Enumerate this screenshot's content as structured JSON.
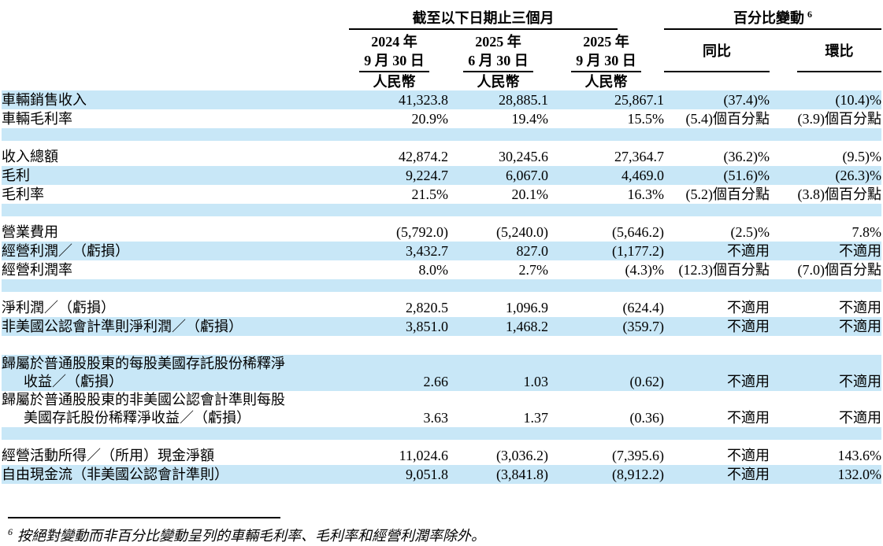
{
  "header": {
    "period_title": "截至以下日期止三個月",
    "change_title": "百分比變動",
    "change_title_sup": "6",
    "columns": [
      {
        "year_line": "2024 年",
        "date_line": "9 月 30 日",
        "currency": "人民幣"
      },
      {
        "year_line": "2025 年",
        "date_line": "6 月 30 日",
        "currency": "人民幣"
      },
      {
        "year_line": "2025 年",
        "date_line": "9 月 30 日",
        "currency": "人民幣"
      }
    ],
    "yoy_label": "同比",
    "qoq_label": "環比"
  },
  "table": {
    "rows": [
      {
        "type": "data",
        "bg": "blue",
        "label": "車輛銷售收入",
        "values": [
          "41,323.8",
          "28,885.1",
          "25,867.1",
          "(37.4)%",
          "(10.4)%"
        ]
      },
      {
        "type": "data",
        "bg": "white",
        "label": "車輛毛利率",
        "values": [
          "20.9%",
          "19.4%",
          "15.5%",
          "(5.4)個百分點",
          "(3.9)個百分點"
        ]
      },
      {
        "type": "spacer",
        "bg": "blue",
        "height": 16
      },
      {
        "type": "spacer",
        "bg": "white",
        "height": 8
      },
      {
        "type": "data",
        "bg": "white",
        "label": "收入總額",
        "values": [
          "42,874.2",
          "30,245.6",
          "27,364.7",
          "(36.2)%",
          "(9.5)%"
        ]
      },
      {
        "type": "data",
        "bg": "blue",
        "label": "毛利",
        "values": [
          "9,224.7",
          "6,067.0",
          "4,469.0",
          "(51.6)%",
          "(26.3)%"
        ]
      },
      {
        "type": "data",
        "bg": "white",
        "label": "毛利率",
        "values": [
          "21.5%",
          "20.1%",
          "16.3%",
          "(5.2)個百分點",
          "(3.8)個百分點"
        ]
      },
      {
        "type": "spacer",
        "bg": "blue",
        "height": 16
      },
      {
        "type": "spacer",
        "bg": "white",
        "height": 8
      },
      {
        "type": "data",
        "bg": "white",
        "label": "營業費用",
        "values": [
          "(5,792.0)",
          "(5,240.0)",
          "(5,646.2)",
          "(2.5)%",
          "7.8%"
        ]
      },
      {
        "type": "data",
        "bg": "blue",
        "label": "經營利潤／（虧損）",
        "values": [
          "3,432.7",
          "827.0",
          "(1,177.2)",
          "不適用",
          "不適用"
        ]
      },
      {
        "type": "data",
        "bg": "white",
        "label": "經營利潤率",
        "values": [
          "8.0%",
          "2.7%",
          "(4.3)%",
          "(12.3)個百分點",
          "(7.0)個百分點"
        ]
      },
      {
        "type": "spacer",
        "bg": "blue",
        "height": 16
      },
      {
        "type": "spacer",
        "bg": "white",
        "height": 8
      },
      {
        "type": "data",
        "bg": "white",
        "label": "淨利潤／（虧損）",
        "values": [
          "2,820.5",
          "1,096.9",
          "(624.4)",
          "不適用",
          "不適用"
        ]
      },
      {
        "type": "data",
        "bg": "blue",
        "label": "非美國公認會計準則淨利潤／（虧損）",
        "values": [
          "3,851.0",
          "1,468.2",
          "(359.7)",
          "不適用",
          "不適用"
        ]
      },
      {
        "type": "spacer",
        "bg": "white",
        "height": 24
      },
      {
        "type": "data",
        "bg": "blue",
        "label": "歸屬於普通股股東的每股美國存託股份稀釋淨",
        "label2": "收益／（虧損）",
        "values": [
          "2.66",
          "1.03",
          "(0.62)",
          "不適用",
          "不適用"
        ]
      },
      {
        "type": "data",
        "bg": "white",
        "label": "歸屬於普通股股東的非美國公認會計準則每股",
        "label2": "美國存託股份稀釋淨收益／（虧損）",
        "values": [
          "3.63",
          "1.37",
          "(0.36)",
          "不適用",
          "不適用"
        ]
      },
      {
        "type": "spacer",
        "bg": "blue",
        "height": 16
      },
      {
        "type": "spacer",
        "bg": "white",
        "height": 8
      },
      {
        "type": "data",
        "bg": "white",
        "label": "經營活動所得／（所用）現金淨額",
        "values": [
          "11,024.6",
          "(3,036.2)",
          "(7,395.6)",
          "不適用",
          "143.6%"
        ]
      },
      {
        "type": "data",
        "bg": "blue",
        "label": "自由現金流（非美國公認會計準則）",
        "values": [
          "9,051.8",
          "(3,841.8)",
          "(8,912.2)",
          "不適用",
          "132.0%"
        ]
      }
    ]
  },
  "footnote": {
    "superscript": "6",
    "text": "按絕對變動而非百分比變動呈列的車輛毛利率、毛利率和經營利潤率除外。"
  },
  "colors": {
    "row_highlight": "#c8e7f7",
    "text": "#000000",
    "rule": "#000000"
  }
}
